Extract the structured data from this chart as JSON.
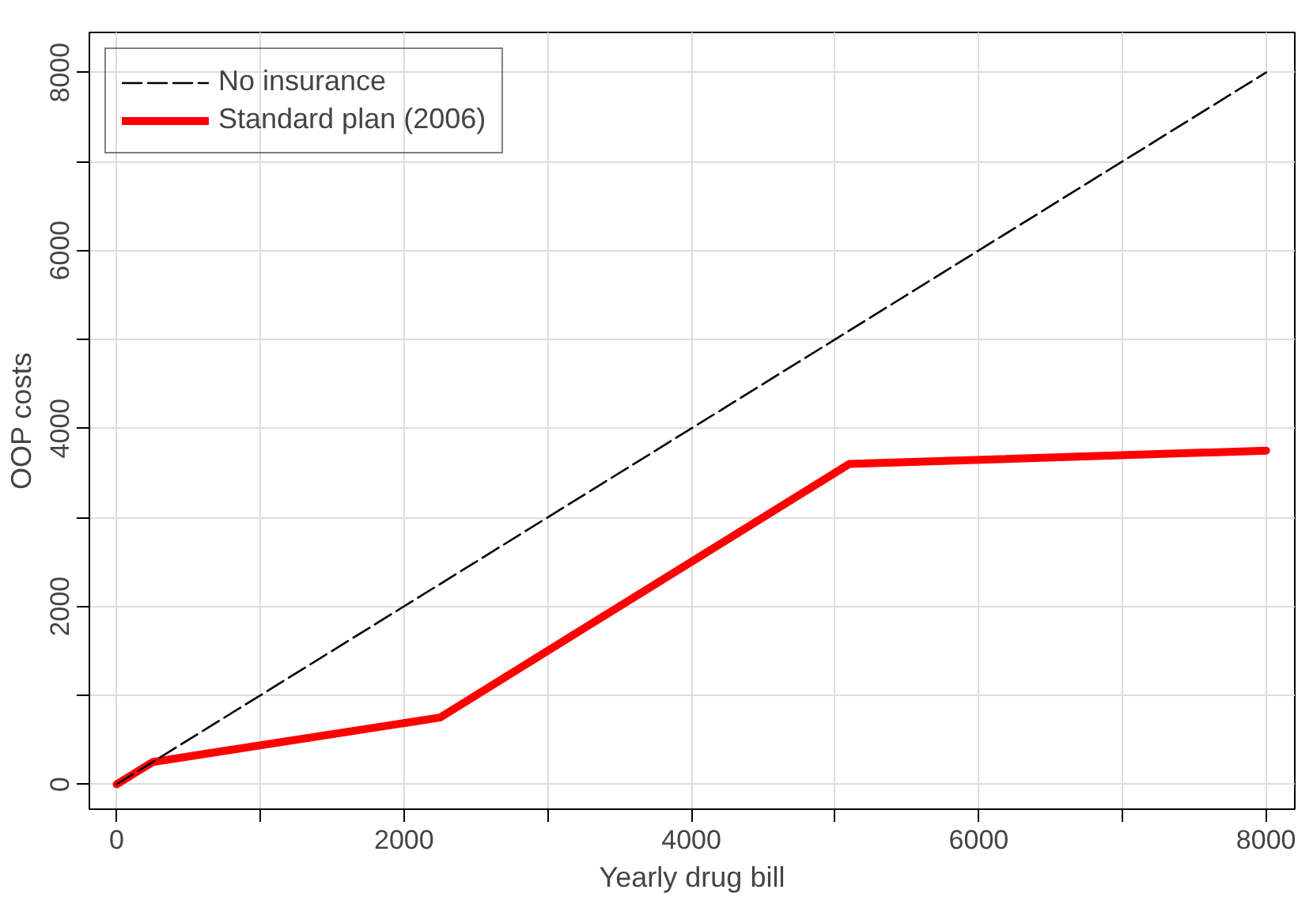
{
  "chart_data": {
    "type": "line",
    "xlabel": "Yearly drug bill",
    "ylabel": "OOP costs",
    "xlim": [
      -190,
      8200
    ],
    "ylim": [
      -280,
      8450
    ],
    "xticks": [
      0,
      {
        "value": 1000,
        "label": null
      },
      2000,
      {
        "value": 3000,
        "label": null
      },
      4000,
      {
        "value": 5000,
        "label": null
      },
      6000,
      {
        "value": 7000,
        "label": null
      },
      8000
    ],
    "yticks": [
      0,
      {
        "value": 1000,
        "label": null
      },
      2000,
      {
        "value": 3000,
        "label": null
      },
      4000,
      {
        "value": 5000,
        "label": null
      },
      6000,
      {
        "value": 7000,
        "label": null
      },
      8000
    ],
    "grid": true,
    "legend": "top left",
    "series": [
      {
        "name": "No insurance",
        "color": "#000000",
        "line_style": "dashed",
        "x": [
          0,
          8000
        ],
        "values": [
          0,
          8000
        ]
      },
      {
        "name": "Standard plan (2006)",
        "color": "#ff0000",
        "line_style": "solid",
        "x": [
          0,
          250,
          2250,
          5100,
          8000
        ],
        "values": [
          0,
          250,
          750,
          3600,
          3750
        ]
      }
    ]
  }
}
